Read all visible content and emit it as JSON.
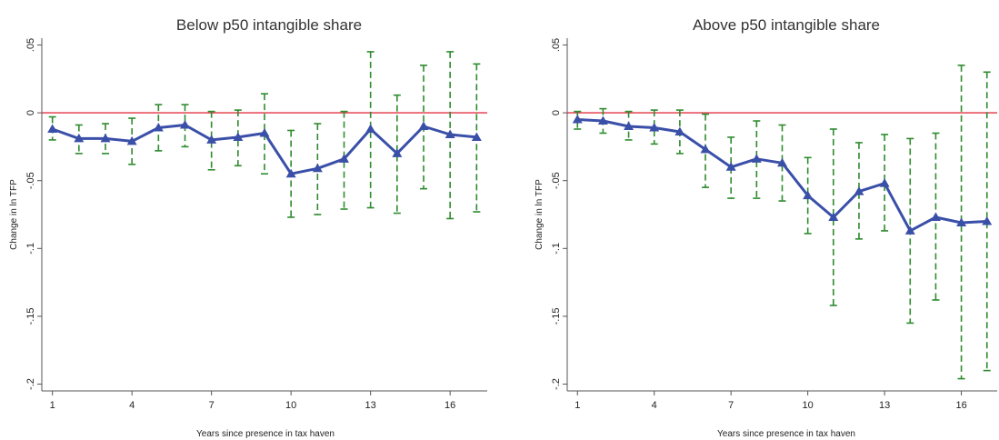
{
  "chart_data": [
    {
      "type": "line",
      "title": "Below p50 intangible share",
      "xlabel": "Years since presence in tax haven",
      "ylabel": "Change in ln TFP",
      "xlim": [
        0.6,
        17.4
      ],
      "ylim": [
        -0.205,
        0.055
      ],
      "xticks": [
        1,
        4,
        7,
        10,
        13,
        16
      ],
      "xtick_labels": [
        "1",
        "4",
        "7",
        "10",
        "13",
        "16"
      ],
      "yticks": [
        0.05,
        0,
        -0.05,
        -0.1,
        -0.15,
        -0.2
      ],
      "ytick_labels": [
        ".05",
        "0",
        "-.05",
        "-.1",
        "-.15",
        "-.2"
      ],
      "reference_line": 0,
      "colors": {
        "line": "#3a4fa8",
        "ci": "#2e8b2e",
        "reference": "#e03040",
        "axis": "#555555"
      },
      "x": [
        1,
        2,
        3,
        4,
        5,
        6,
        7,
        8,
        9,
        10,
        11,
        12,
        13,
        14,
        15,
        16,
        17
      ],
      "y": [
        -0.012,
        -0.019,
        -0.019,
        -0.021,
        -0.011,
        -0.009,
        -0.02,
        -0.018,
        -0.015,
        -0.045,
        -0.041,
        -0.034,
        -0.012,
        -0.03,
        -0.01,
        -0.016,
        -0.018
      ],
      "ci_low": [
        -0.02,
        -0.03,
        -0.03,
        -0.038,
        -0.028,
        -0.025,
        -0.042,
        -0.039,
        -0.045,
        -0.077,
        -0.075,
        -0.071,
        -0.07,
        -0.074,
        -0.056,
        -0.078,
        -0.073
      ],
      "ci_high": [
        -0.003,
        -0.009,
        -0.008,
        -0.004,
        0.006,
        0.006,
        0.001,
        0.002,
        0.014,
        -0.013,
        -0.008,
        0.001,
        0.045,
        0.013,
        0.035,
        0.045,
        0.036
      ]
    },
    {
      "type": "line",
      "title": "Above p50 intangible share",
      "xlabel": "Years since presence in tax haven",
      "ylabel": "Change in ln TFP",
      "xlim": [
        0.6,
        17.4
      ],
      "ylim": [
        -0.205,
        0.055
      ],
      "xticks": [
        1,
        4,
        7,
        10,
        13,
        16
      ],
      "xtick_labels": [
        "1",
        "4",
        "7",
        "10",
        "13",
        "16"
      ],
      "yticks": [
        0.05,
        0,
        -0.05,
        -0.1,
        -0.15,
        -0.2
      ],
      "ytick_labels": [
        ".05",
        "0",
        "-.05",
        "-.1",
        "-.15",
        "-.2"
      ],
      "reference_line": 0,
      "colors": {
        "line": "#3a4fa8",
        "ci": "#2e8b2e",
        "reference": "#e03040",
        "axis": "#555555"
      },
      "x": [
        1,
        2,
        3,
        4,
        5,
        6,
        7,
        8,
        9,
        10,
        11,
        12,
        13,
        14,
        15,
        16,
        17
      ],
      "y": [
        -0.005,
        -0.006,
        -0.01,
        -0.011,
        -0.014,
        -0.027,
        -0.04,
        -0.034,
        -0.037,
        -0.061,
        -0.077,
        -0.058,
        -0.052,
        -0.087,
        -0.077,
        -0.081,
        -0.08
      ],
      "ci_low": [
        -0.012,
        -0.015,
        -0.02,
        -0.023,
        -0.03,
        -0.055,
        -0.063,
        -0.063,
        -0.065,
        -0.089,
        -0.142,
        -0.093,
        -0.087,
        -0.155,
        -0.138,
        -0.196,
        -0.19
      ],
      "ci_high": [
        0.001,
        0.003,
        0.001,
        0.002,
        0.002,
        -0.001,
        -0.018,
        -0.006,
        -0.009,
        -0.033,
        -0.012,
        -0.022,
        -0.016,
        -0.019,
        -0.015,
        0.035,
        0.03
      ]
    }
  ]
}
